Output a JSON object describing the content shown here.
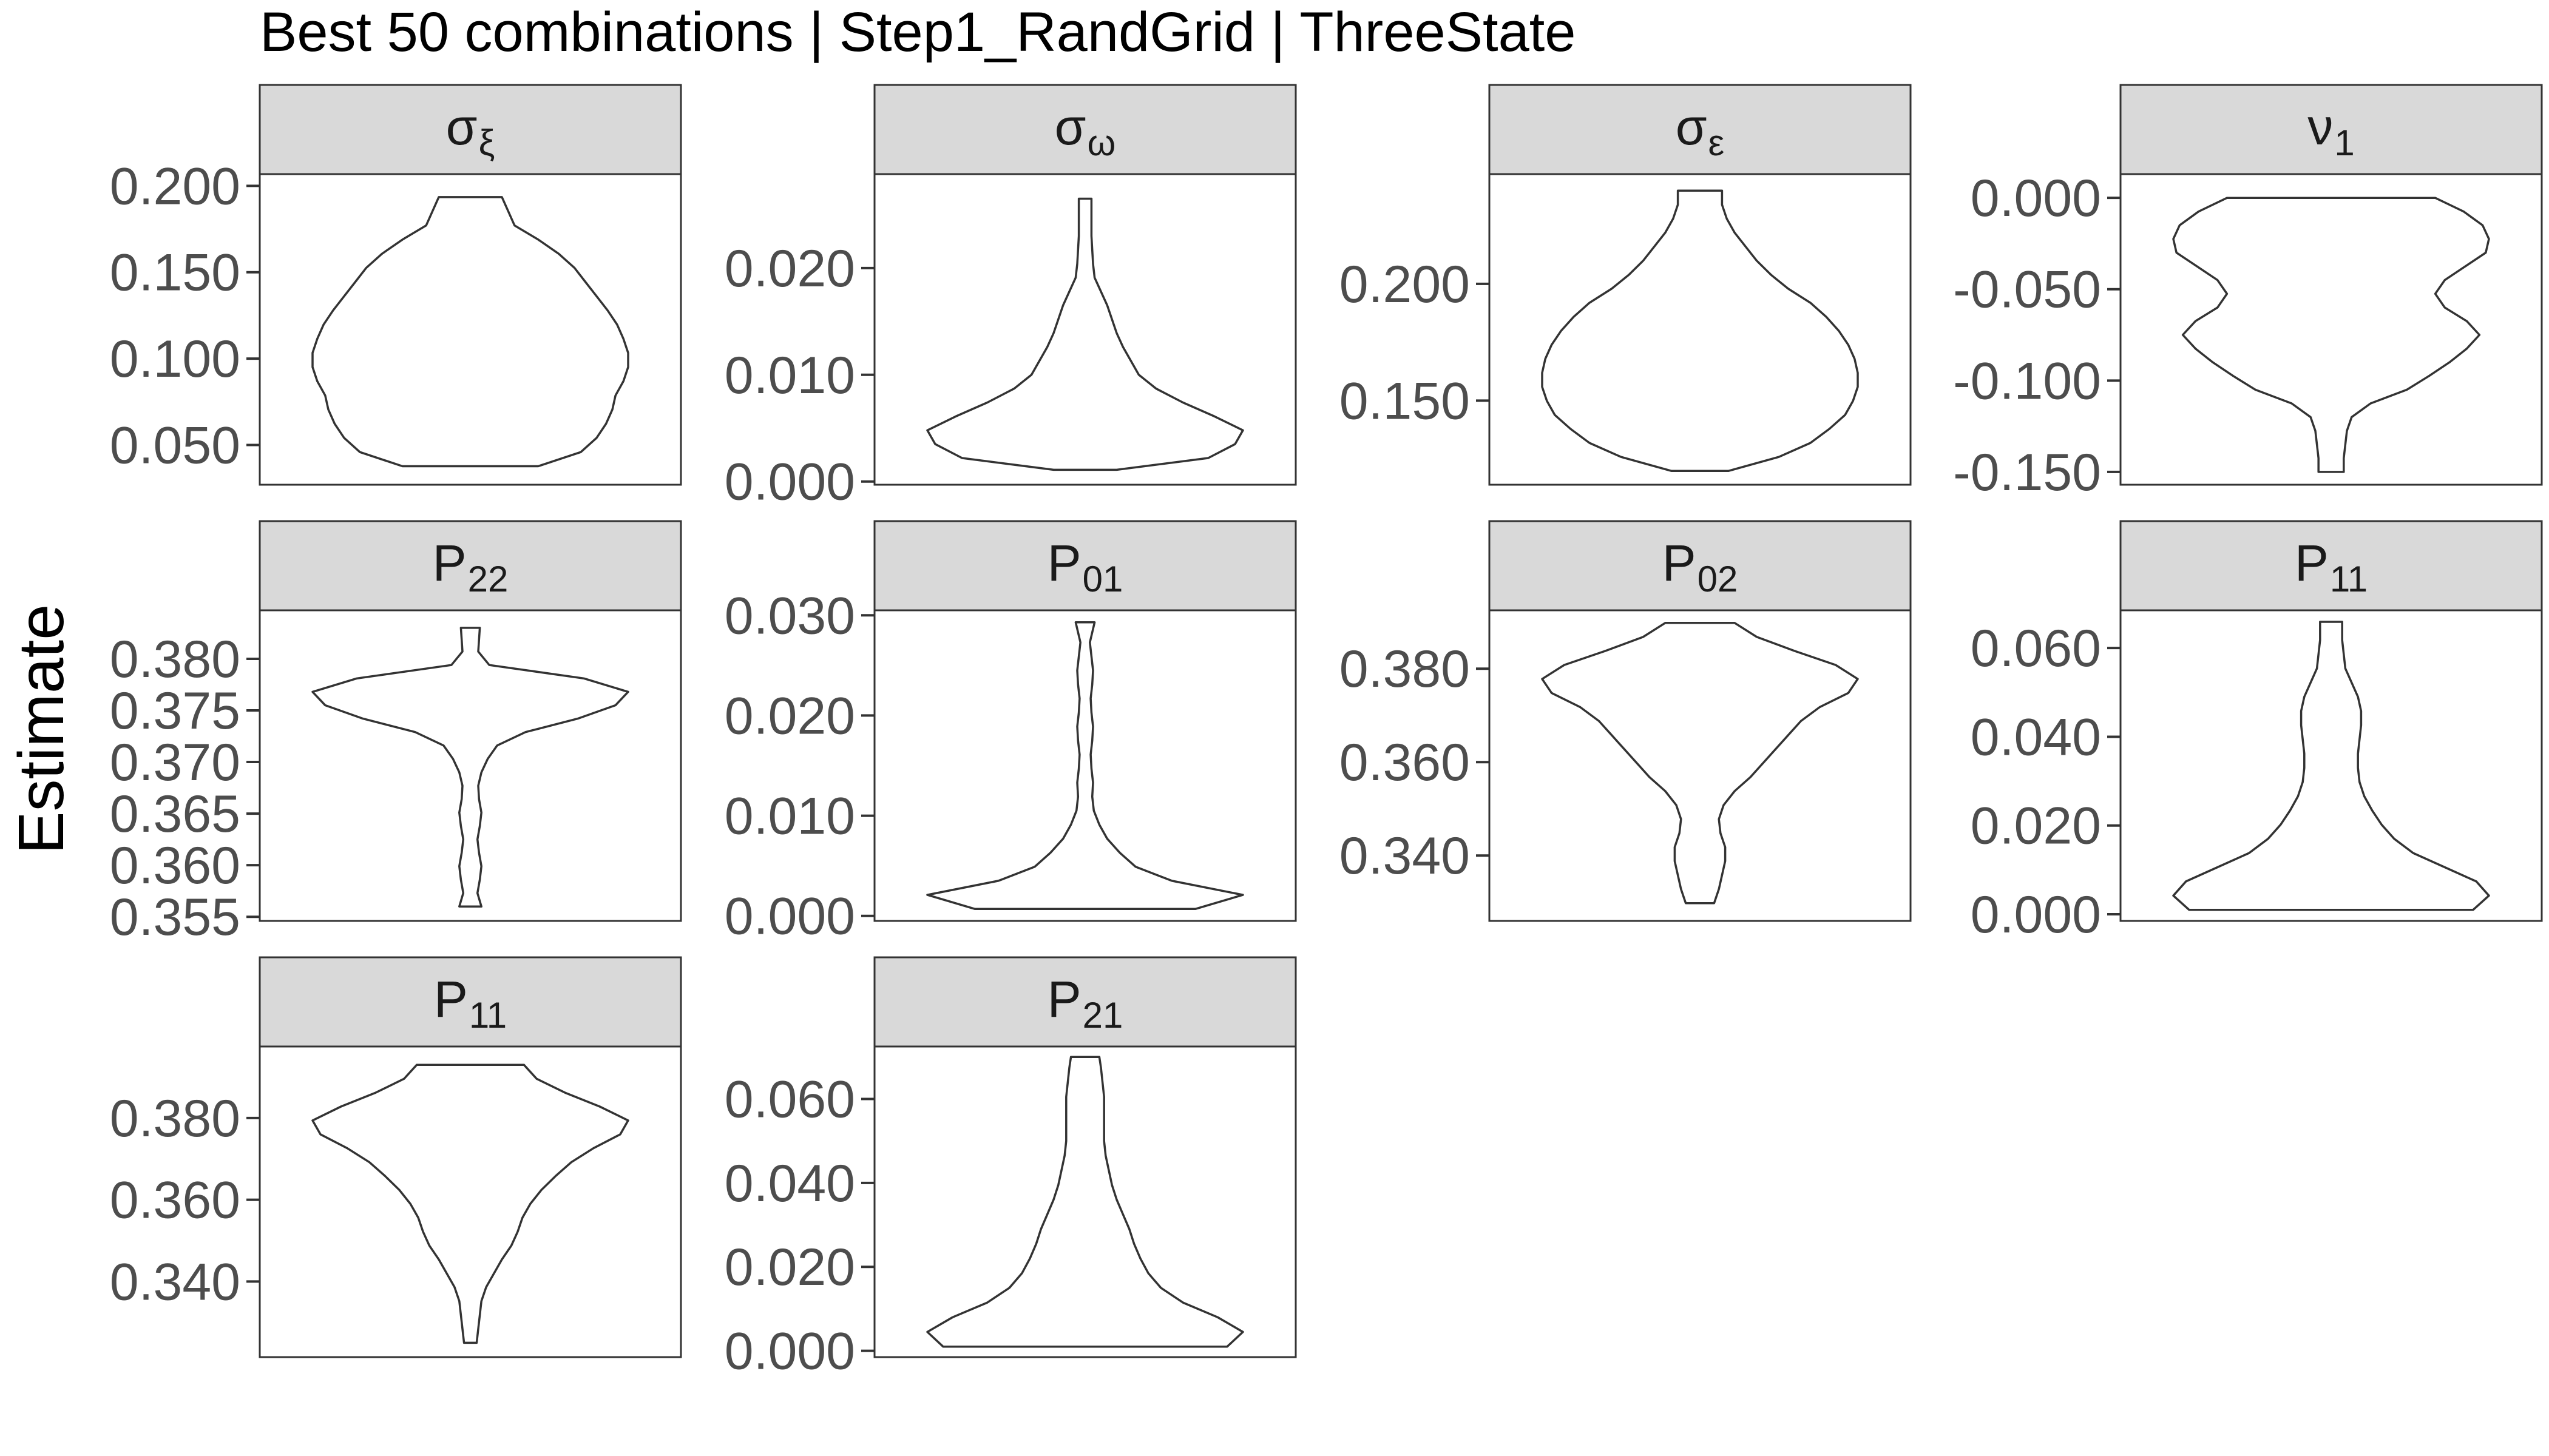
{
  "title": "Best 50 combinations | Step1_RandGrid | ThreeState",
  "ylabel": "Estimate",
  "colors": {
    "background": "#FFFFFF",
    "strip_fill": "#D9D9D9",
    "panel_border": "#333333",
    "violin_stroke": "#333333",
    "tick_text": "#4D4D4D",
    "title_text": "#000000"
  },
  "chart_data": [
    {
      "type": "violin",
      "strip": {
        "base": "σ",
        "sub": "ξ"
      },
      "yrange": [
        0.027,
        0.2068
      ],
      "yticks": [
        0.05,
        0.1,
        0.15,
        0.2
      ],
      "yticklabels": [
        "0.050",
        "0.100",
        "0.150",
        "0.200"
      ],
      "density": [
        [
          0.0377,
          0.43
        ],
        [
          0.0459,
          0.7
        ],
        [
          0.0541,
          0.8
        ],
        [
          0.0623,
          0.86
        ],
        [
          0.0705,
          0.9
        ],
        [
          0.0787,
          0.92
        ],
        [
          0.0869,
          0.97
        ],
        [
          0.0951,
          1.0
        ],
        [
          0.1033,
          1.0
        ],
        [
          0.1115,
          0.97
        ],
        [
          0.1197,
          0.93
        ],
        [
          0.1279,
          0.87
        ],
        [
          0.1361,
          0.8
        ],
        [
          0.1443,
          0.73
        ],
        [
          0.1525,
          0.66
        ],
        [
          0.1607,
          0.56
        ],
        [
          0.1689,
          0.43
        ],
        [
          0.1771,
          0.28
        ],
        [
          0.1853,
          0.24
        ],
        [
          0.1935,
          0.2
        ],
        [
          0.1935,
          0.2
        ]
      ]
    },
    {
      "type": "violin",
      "strip": {
        "base": "σ",
        "sub": "ω"
      },
      "yrange": [
        -0.0003,
        0.0288
      ],
      "yticks": [
        0.0,
        0.01,
        0.02
      ],
      "yticklabels": [
        "0.000",
        "0.010",
        "0.020"
      ],
      "density": [
        [
          0.0011,
          0.2
        ],
        [
          0.0022,
          0.78
        ],
        [
          0.0035,
          0.95
        ],
        [
          0.0048,
          1.0
        ],
        [
          0.0061,
          0.82
        ],
        [
          0.0074,
          0.62
        ],
        [
          0.0087,
          0.45
        ],
        [
          0.01,
          0.34
        ],
        [
          0.0113,
          0.29
        ],
        [
          0.0126,
          0.24
        ],
        [
          0.0139,
          0.2
        ],
        [
          0.0152,
          0.17
        ],
        [
          0.0165,
          0.14
        ],
        [
          0.0178,
          0.1
        ],
        [
          0.0191,
          0.06
        ],
        [
          0.0204,
          0.05
        ],
        [
          0.0217,
          0.045
        ],
        [
          0.023,
          0.04
        ],
        [
          0.0243,
          0.04
        ],
        [
          0.0256,
          0.04
        ],
        [
          0.0265,
          0.04
        ]
      ]
    },
    {
      "type": "violin",
      "strip": {
        "base": "σ",
        "sub": "ε"
      },
      "yrange": [
        0.114,
        0.247
      ],
      "yticks": [
        0.15,
        0.2
      ],
      "yticklabels": [
        "0.150",
        "0.200"
      ],
      "density": [
        [
          0.1199,
          0.18
        ],
        [
          0.1259,
          0.5
        ],
        [
          0.1319,
          0.7
        ],
        [
          0.1379,
          0.82
        ],
        [
          0.1439,
          0.92
        ],
        [
          0.1499,
          0.97
        ],
        [
          0.1559,
          1.0
        ],
        [
          0.1619,
          1.0
        ],
        [
          0.1679,
          0.98
        ],
        [
          0.1739,
          0.94
        ],
        [
          0.1799,
          0.88
        ],
        [
          0.1859,
          0.8
        ],
        [
          0.1919,
          0.7
        ],
        [
          0.1979,
          0.56
        ],
        [
          0.2039,
          0.45
        ],
        [
          0.2099,
          0.36
        ],
        [
          0.2159,
          0.29
        ],
        [
          0.2219,
          0.22
        ],
        [
          0.2279,
          0.17
        ],
        [
          0.2339,
          0.14
        ],
        [
          0.2399,
          0.14
        ]
      ]
    },
    {
      "type": "violin",
      "strip": {
        "base": "ν",
        "sub": "1"
      },
      "yrange": [
        -0.157,
        0.013
      ],
      "yticks": [
        -0.15,
        -0.1,
        -0.05,
        0.0
      ],
      "yticklabels": [
        "-0.150",
        "-0.100",
        "-0.050",
        "0.000"
      ],
      "density": [
        [
          -0.15,
          0.08
        ],
        [
          -0.1425,
          0.08
        ],
        [
          -0.135,
          0.09
        ],
        [
          -0.1275,
          0.1
        ],
        [
          -0.12,
          0.13
        ],
        [
          -0.1125,
          0.25
        ],
        [
          -0.105,
          0.48
        ],
        [
          -0.0975,
          0.62
        ],
        [
          -0.09,
          0.75
        ],
        [
          -0.0825,
          0.86
        ],
        [
          -0.075,
          0.94
        ],
        [
          -0.0675,
          0.86
        ],
        [
          -0.06,
          0.72
        ],
        [
          -0.0525,
          0.66
        ],
        [
          -0.045,
          0.72
        ],
        [
          -0.0375,
          0.85
        ],
        [
          -0.03,
          0.98
        ],
        [
          -0.0225,
          1.0
        ],
        [
          -0.015,
          0.96
        ],
        [
          -0.0075,
          0.84
        ],
        [
          0.0,
          0.66
        ]
      ]
    },
    {
      "type": "violin",
      "strip": {
        "base": "P",
        "sub": "22"
      },
      "yrange": [
        0.3546,
        0.3847
      ],
      "yticks": [
        0.355,
        0.36,
        0.365,
        0.37,
        0.375,
        0.38
      ],
      "yticklabels": [
        "0.355",
        "0.360",
        "0.365",
        "0.370",
        "0.375",
        "0.380"
      ],
      "density": [
        [
          0.356,
          0.07
        ],
        [
          0.3573,
          0.045
        ],
        [
          0.3586,
          0.06
        ],
        [
          0.3599,
          0.07
        ],
        [
          0.3612,
          0.055
        ],
        [
          0.3625,
          0.045
        ],
        [
          0.3638,
          0.06
        ],
        [
          0.3651,
          0.07
        ],
        [
          0.3664,
          0.055
        ],
        [
          0.3677,
          0.05
        ],
        [
          0.369,
          0.07
        ],
        [
          0.3703,
          0.11
        ],
        [
          0.3716,
          0.17
        ],
        [
          0.3729,
          0.35
        ],
        [
          0.3742,
          0.68
        ],
        [
          0.3755,
          0.92
        ],
        [
          0.3768,
          1.0
        ],
        [
          0.3781,
          0.72
        ],
        [
          0.3794,
          0.12
        ],
        [
          0.3807,
          0.05
        ],
        [
          0.383,
          0.06
        ]
      ]
    },
    {
      "type": "violin",
      "strip": {
        "base": "P",
        "sub": "01"
      },
      "yrange": [
        -0.0005,
        0.0305
      ],
      "yticks": [
        0.0,
        0.01,
        0.02,
        0.03
      ],
      "yticklabels": [
        "0.000",
        "0.010",
        "0.020",
        "0.030"
      ],
      "density": [
        [
          0.0007,
          0.7
        ],
        [
          0.0021,
          1.0
        ],
        [
          0.0035,
          0.55
        ],
        [
          0.0049,
          0.32
        ],
        [
          0.0063,
          0.22
        ],
        [
          0.0077,
          0.14
        ],
        [
          0.0091,
          0.09
        ],
        [
          0.0105,
          0.055
        ],
        [
          0.0119,
          0.045
        ],
        [
          0.0133,
          0.05
        ],
        [
          0.0147,
          0.04
        ],
        [
          0.0161,
          0.035
        ],
        [
          0.0175,
          0.045
        ],
        [
          0.0189,
          0.05
        ],
        [
          0.0203,
          0.04
        ],
        [
          0.0217,
          0.035
        ],
        [
          0.0231,
          0.045
        ],
        [
          0.0245,
          0.05
        ],
        [
          0.0259,
          0.04
        ],
        [
          0.0273,
          0.03
        ],
        [
          0.0293,
          0.06
        ]
      ]
    },
    {
      "type": "violin",
      "strip": {
        "base": "P",
        "sub": "02"
      },
      "yrange": [
        0.326,
        0.3925
      ],
      "yticks": [
        0.34,
        0.36,
        0.38
      ],
      "yticklabels": [
        "0.340",
        "0.360",
        "0.380"
      ],
      "density": [
        [
          0.3298,
          0.09
        ],
        [
          0.3328,
          0.12
        ],
        [
          0.3358,
          0.14
        ],
        [
          0.3388,
          0.16
        ],
        [
          0.3418,
          0.16
        ],
        [
          0.3448,
          0.13
        ],
        [
          0.3478,
          0.12
        ],
        [
          0.3508,
          0.15
        ],
        [
          0.3538,
          0.22
        ],
        [
          0.3568,
          0.32
        ],
        [
          0.3598,
          0.4
        ],
        [
          0.3628,
          0.48
        ],
        [
          0.3658,
          0.56
        ],
        [
          0.3688,
          0.64
        ],
        [
          0.3718,
          0.76
        ],
        [
          0.3748,
          0.94
        ],
        [
          0.3778,
          1.0
        ],
        [
          0.3808,
          0.86
        ],
        [
          0.3838,
          0.6
        ],
        [
          0.3868,
          0.36
        ],
        [
          0.3898,
          0.22
        ]
      ]
    },
    {
      "type": "violin",
      "strip": {
        "base": "P",
        "sub": "11"
      },
      "yrange": [
        -0.0015,
        0.0685
      ],
      "yticks": [
        0.0,
        0.02,
        0.04,
        0.06
      ],
      "yticklabels": [
        "0.000",
        "0.020",
        "0.040",
        "0.060"
      ],
      "density": [
        [
          0.001,
          0.9
        ],
        [
          0.0042,
          1.0
        ],
        [
          0.0074,
          0.92
        ],
        [
          0.0106,
          0.72
        ],
        [
          0.0138,
          0.52
        ],
        [
          0.017,
          0.4
        ],
        [
          0.0202,
          0.32
        ],
        [
          0.0234,
          0.26
        ],
        [
          0.0266,
          0.21
        ],
        [
          0.0298,
          0.18
        ],
        [
          0.033,
          0.17
        ],
        [
          0.0362,
          0.17
        ],
        [
          0.0394,
          0.18
        ],
        [
          0.0426,
          0.19
        ],
        [
          0.0458,
          0.19
        ],
        [
          0.049,
          0.17
        ],
        [
          0.0522,
          0.13
        ],
        [
          0.0554,
          0.09
        ],
        [
          0.0586,
          0.08
        ],
        [
          0.0618,
          0.07
        ],
        [
          0.0659,
          0.07
        ]
      ]
    },
    {
      "type": "violin",
      "strip": {
        "base": "P",
        "sub": "11"
      },
      "yrange": [
        0.3215,
        0.3975
      ],
      "yticks": [
        0.34,
        0.36,
        0.38
      ],
      "yticklabels": [
        "0.340",
        "0.360",
        "0.380"
      ],
      "density": [
        [
          0.325,
          0.04
        ],
        [
          0.3284,
          0.05
        ],
        [
          0.3318,
          0.06
        ],
        [
          0.3352,
          0.07
        ],
        [
          0.3386,
          0.1
        ],
        [
          0.342,
          0.15
        ],
        [
          0.3454,
          0.2
        ],
        [
          0.3488,
          0.26
        ],
        [
          0.3522,
          0.3
        ],
        [
          0.3556,
          0.33
        ],
        [
          0.359,
          0.38
        ],
        [
          0.3624,
          0.45
        ],
        [
          0.3658,
          0.54
        ],
        [
          0.3692,
          0.64
        ],
        [
          0.3726,
          0.78
        ],
        [
          0.376,
          0.95
        ],
        [
          0.3794,
          1.0
        ],
        [
          0.3828,
          0.82
        ],
        [
          0.3862,
          0.6
        ],
        [
          0.3896,
          0.42
        ],
        [
          0.393,
          0.34
        ]
      ]
    },
    {
      "type": "violin",
      "strip": {
        "base": "P",
        "sub": "21"
      },
      "yrange": [
        -0.0015,
        0.0725
      ],
      "yticks": [
        0.0,
        0.02,
        0.04,
        0.06
      ],
      "yticklabels": [
        "0.000",
        "0.020",
        "0.040",
        "0.060"
      ],
      "density": [
        [
          0.001,
          0.9
        ],
        [
          0.0045,
          1.0
        ],
        [
          0.008,
          0.84
        ],
        [
          0.0115,
          0.62
        ],
        [
          0.015,
          0.48
        ],
        [
          0.0185,
          0.4
        ],
        [
          0.022,
          0.35
        ],
        [
          0.0255,
          0.31
        ],
        [
          0.029,
          0.28
        ],
        [
          0.0325,
          0.24
        ],
        [
          0.036,
          0.2
        ],
        [
          0.0395,
          0.17
        ],
        [
          0.043,
          0.15
        ],
        [
          0.0465,
          0.13
        ],
        [
          0.05,
          0.12
        ],
        [
          0.0535,
          0.12
        ],
        [
          0.057,
          0.12
        ],
        [
          0.0605,
          0.12
        ],
        [
          0.064,
          0.11
        ],
        [
          0.0675,
          0.1
        ],
        [
          0.07,
          0.09
        ]
      ]
    }
  ]
}
